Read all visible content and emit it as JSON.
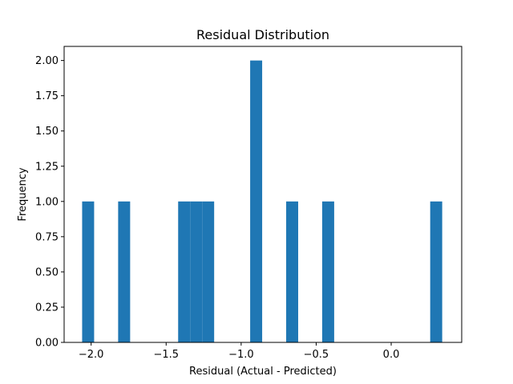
{
  "chart_data": {
    "type": "bar",
    "title": "Residual Distribution",
    "xlabel": "Residual (Actual - Predicted)",
    "ylabel": "Frequency",
    "bar_color": "#1f77b4",
    "grid": false,
    "legend": "none",
    "xlim": [
      -2.18,
      0.47
    ],
    "ylim": [
      0,
      2.1
    ],
    "bin_width": 0.08,
    "bins": [
      {
        "x": -2.02,
        "count": 1
      },
      {
        "x": -1.78,
        "count": 1
      },
      {
        "x": -1.38,
        "count": 1
      },
      {
        "x": -1.3,
        "count": 1
      },
      {
        "x": -1.22,
        "count": 1
      },
      {
        "x": -0.9,
        "count": 2
      },
      {
        "x": -0.66,
        "count": 1
      },
      {
        "x": -0.42,
        "count": 1
      },
      {
        "x": 0.3,
        "count": 1
      }
    ],
    "xticks": [
      -2.0,
      -1.5,
      -1.0,
      -0.5,
      0.0
    ],
    "xtick_labels": [
      "−2.0",
      "−1.5",
      "−1.0",
      "−0.5",
      "0.0"
    ],
    "yticks": [
      0,
      0.25,
      0.5,
      0.75,
      1.0,
      1.25,
      1.5,
      1.75,
      2.0
    ],
    "ytick_labels": [
      "0.00",
      "0.25",
      "0.50",
      "0.75",
      "1.00",
      "1.25",
      "1.50",
      "1.75",
      "2.00"
    ]
  }
}
